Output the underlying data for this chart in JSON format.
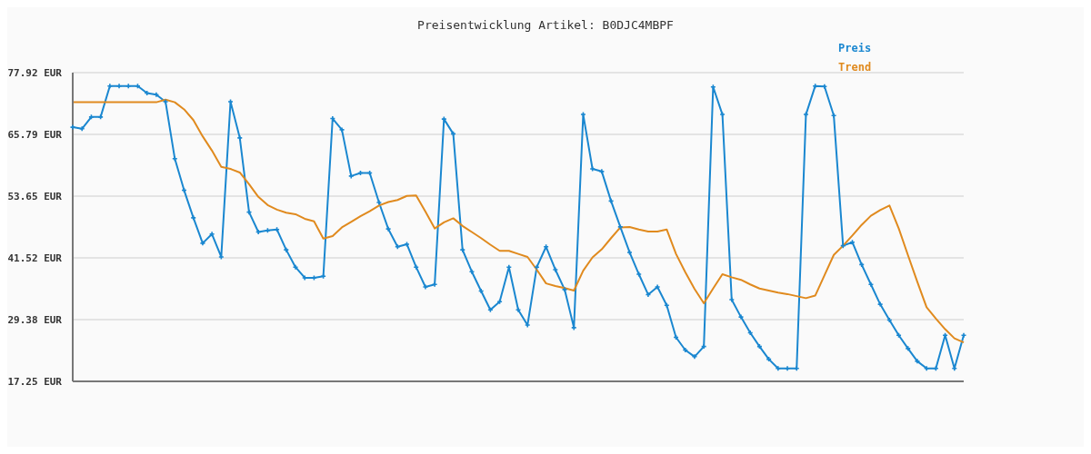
{
  "chart_data": {
    "type": "line",
    "title": "Preisentwicklung Artikel: B0DJC4MBPF",
    "categories": [
      null,
      null,
      null,
      null,
      null,
      null,
      null,
      null,
      null,
      null,
      null,
      null,
      null,
      null,
      null,
      null,
      null,
      null,
      null,
      null,
      null,
      null,
      null,
      null,
      null,
      null,
      null,
      null,
      null,
      null,
      null,
      null,
      null,
      null,
      null,
      null,
      null,
      null,
      null,
      null,
      null,
      null,
      null,
      null,
      null,
      null,
      null,
      null,
      null,
      null,
      null,
      null,
      null,
      null,
      null,
      null,
      null,
      null,
      null,
      null,
      null,
      null,
      null,
      null,
      null,
      null,
      null,
      null,
      null,
      null,
      null,
      null,
      null,
      null,
      null,
      null,
      null,
      null,
      null,
      null,
      null,
      null,
      null,
      null,
      null,
      null,
      null,
      null,
      null,
      null,
      null,
      null,
      null,
      null,
      null,
      null,
      null
    ],
    "series": [
      {
        "name": "Preis",
        "color": "#1a87d0",
        "marker": "cross",
        "values": [
          67.2,
          66.9,
          69.2,
          69.2,
          75.3,
          75.3,
          75.3,
          75.3,
          73.9,
          73.6,
          72.2,
          61.0,
          54.8,
          49.4,
          44.4,
          46.2,
          41.7,
          72.2,
          65.1,
          50.5,
          46.6,
          46.9,
          47.1,
          43.1,
          39.7,
          37.6,
          37.6,
          37.9,
          68.9,
          66.7,
          57.6,
          58.2,
          58.2,
          52.4,
          47.2,
          43.7,
          44.2,
          39.7,
          35.8,
          36.3,
          68.8,
          65.9,
          43.1,
          38.8,
          35.0,
          31.3,
          32.9,
          39.7,
          31.3,
          28.3,
          39.7,
          43.7,
          39.2,
          35.3,
          27.8,
          69.7,
          59.0,
          58.5,
          52.7,
          47.6,
          42.6,
          38.3,
          34.3,
          35.8,
          32.2,
          25.9,
          23.4,
          22.1,
          24.1,
          75.1,
          69.7,
          33.3,
          29.9,
          26.8,
          24.1,
          21.6,
          19.8,
          19.8,
          19.8,
          69.7,
          75.3,
          75.2,
          69.5,
          43.9,
          44.6,
          40.2,
          36.3,
          32.4,
          29.3,
          26.3,
          23.7,
          21.2,
          19.8,
          19.8,
          26.3,
          19.8,
          26.3
        ]
      },
      {
        "name": "Trend",
        "color": "#e08a1e",
        "marker": "none",
        "values": [
          72.1,
          72.1,
          72.1,
          72.1,
          72.1,
          72.1,
          72.1,
          72.1,
          72.1,
          72.1,
          72.6,
          72.1,
          70.7,
          68.6,
          65.4,
          62.6,
          59.4,
          59.0,
          58.3,
          56.0,
          53.5,
          51.9,
          51.0,
          50.4,
          50.1,
          49.2,
          48.7,
          45.3,
          45.8,
          47.5,
          48.6,
          49.7,
          50.7,
          51.8,
          52.5,
          52.9,
          53.7,
          53.8,
          50.6,
          47.3,
          48.5,
          49.3,
          47.8,
          46.6,
          45.4,
          44.1,
          42.9,
          42.9,
          42.3,
          41.7,
          39.2,
          36.5,
          36.0,
          35.6,
          35.1,
          39.0,
          41.6,
          43.2,
          45.4,
          47.5,
          47.6,
          47.1,
          46.7,
          46.7,
          47.1,
          42.3,
          38.7,
          35.4,
          32.6,
          35.5,
          38.3,
          37.7,
          37.2,
          36.3,
          35.5,
          35.1,
          34.7,
          34.4,
          34.0,
          33.6,
          34.1,
          38.1,
          42.1,
          43.9,
          45.9,
          48.0,
          49.8,
          50.9,
          51.8,
          47.3,
          42.0,
          36.8,
          31.8,
          29.6,
          27.5,
          25.7,
          24.9
        ]
      }
    ],
    "ylim": [
      17.25,
      77.92
    ],
    "yticks": [
      {
        "value": 17.25,
        "label": "17.25 EUR"
      },
      {
        "value": 29.38,
        "label": "29.38 EUR"
      },
      {
        "value": 41.52,
        "label": "41.52 EUR"
      },
      {
        "value": 53.65,
        "label": "53.65 EUR"
      },
      {
        "value": 65.79,
        "label": "65.79 EUR"
      },
      {
        "value": 77.92,
        "label": "77.92 EUR"
      }
    ],
    "grid": "y",
    "legend": "top right",
    "line_style": "solid"
  }
}
